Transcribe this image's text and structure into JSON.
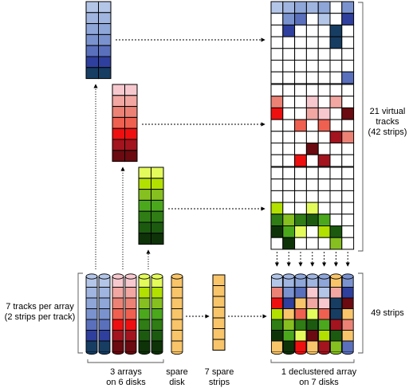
{
  "labels": {
    "tracks_per_array": "7 tracks per array\n(2 strips per track)",
    "arrays": "3 arrays\non 6 disks",
    "spare_disk": "spare\ndisk",
    "spare_strips": "7 spare\nstrips",
    "declustered_array": "1 declustered array\non 7 disks",
    "virtual_tracks": "21 virtual\ntracks\n(42 strips)",
    "strips": "49 strips"
  },
  "colors": {
    "blue": [
      "#b4c6e8",
      "#a0b5e0",
      "#8ea6d8",
      "#7a93cf",
      "#5a70bd",
      "#2f3f9e",
      "#173d63"
    ],
    "red": [
      "#f7c9cf",
      "#f2a7a2",
      "#ec8276",
      "#f06050",
      "#ee1010",
      "#a3141e",
      "#6b0a10"
    ],
    "green": [
      "#e4fb5c",
      "#b2e000",
      "#86c020",
      "#4ba81d",
      "#2f7d14",
      "#1c5a10",
      "#0f3309"
    ],
    "spare": "#f8c56a",
    "cap_top": "#d9e2f0"
  },
  "arrays": [
    {
      "name": "blue",
      "disks": 2
    },
    {
      "name": "red",
      "disks": 2
    },
    {
      "name": "green",
      "disks": 2
    }
  ],
  "spare": {
    "strips": 7
  },
  "declustered": {
    "disks": 7,
    "rows": [
      [
        "blue0",
        "blue1",
        "blue2",
        "blue1",
        "blue2",
        "spare",
        "blue3"
      ],
      [
        "red2",
        "blue3",
        "blue4",
        "red0",
        "blue0",
        "red1",
        "blue5"
      ],
      [
        "red4",
        "blue5",
        "spare",
        "red1",
        "red0",
        "blue6",
        "red6"
      ],
      [
        "green1",
        "spare",
        "red3",
        "green0",
        "red3",
        "blue6",
        "spare"
      ],
      [
        "green4",
        "green2",
        "green4",
        "green5",
        "green3",
        "red5",
        "red2"
      ],
      [
        "green6",
        "green3",
        "green0",
        "red6",
        "green1",
        "green5",
        "spare"
      ],
      [
        "spare",
        "green6",
        "red4",
        "spare",
        "red5",
        "green2",
        "blue4"
      ]
    ]
  }
}
